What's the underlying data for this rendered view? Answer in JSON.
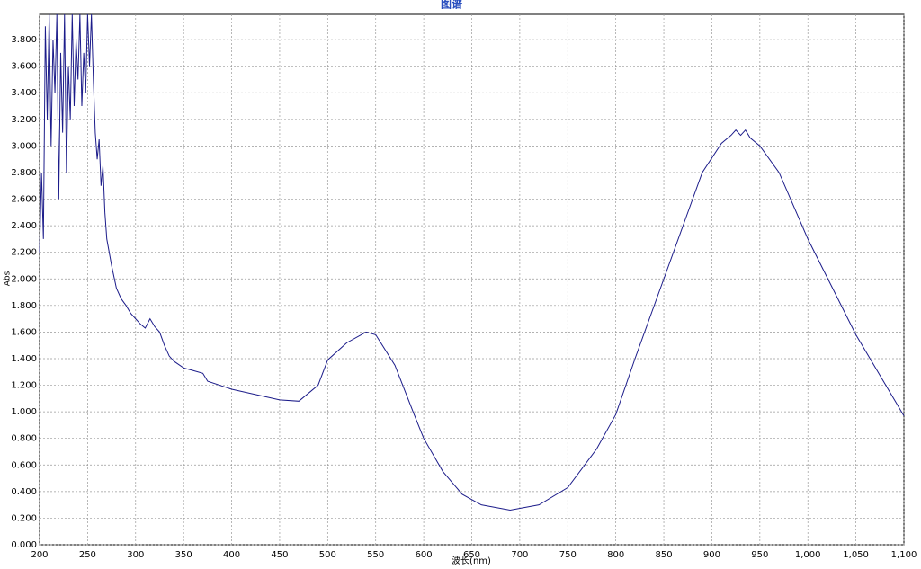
{
  "chart_data": {
    "type": "line",
    "title": "图谱",
    "y_label": "Abs",
    "x_label": "波长(nm)",
    "xlim": [
      200,
      1100
    ],
    "ylim": [
      0,
      3.99
    ],
    "grid": true,
    "xticks": [
      200,
      250,
      300,
      350,
      400,
      450,
      500,
      550,
      600,
      650,
      700,
      750,
      800,
      850,
      900,
      950,
      {
        "value": 1000,
        "label": "1,000"
      },
      {
        "value": 1050,
        "label": "1,050"
      },
      {
        "value": 1100,
        "label": "1,100"
      }
    ],
    "yticks": [
      {
        "value": 0,
        "label": "0.000"
      },
      {
        "value": 0.2,
        "label": "0.200"
      },
      {
        "value": 0.4,
        "label": "0.400"
      },
      {
        "value": 0.6,
        "label": "0.600"
      },
      {
        "value": 0.8,
        "label": "0.800"
      },
      {
        "value": 1,
        "label": "1.000"
      },
      {
        "value": 1.2,
        "label": "1.200"
      },
      {
        "value": 1.4,
        "label": "1.400"
      },
      {
        "value": 1.6,
        "label": "1.600"
      },
      {
        "value": 1.8,
        "label": "1.800"
      },
      {
        "value": 2,
        "label": "2.000"
      },
      {
        "value": 2.2,
        "label": "2.200"
      },
      {
        "value": 2.4,
        "label": "2.400"
      },
      {
        "value": 2.6,
        "label": "2.600"
      },
      {
        "value": 2.8,
        "label": "2.800"
      },
      {
        "value": 3,
        "label": "3.000"
      },
      {
        "value": 3.2,
        "label": "3.200"
      },
      {
        "value": 3.4,
        "label": "3.400"
      },
      {
        "value": 3.6,
        "label": "3.600"
      },
      {
        "value": 3.8,
        "label": "3.800"
      }
    ],
    "x": [
      200,
      202,
      204,
      206,
      208,
      210,
      212,
      214,
      216,
      218,
      220,
      222,
      224,
      226,
      228,
      230,
      232,
      234,
      236,
      238,
      240,
      242,
      244,
      246,
      248,
      250,
      252,
      254,
      256,
      258,
      260,
      262,
      264,
      266,
      268,
      270,
      275,
      280,
      285,
      290,
      295,
      300,
      305,
      310,
      315,
      320,
      325,
      330,
      335,
      340,
      350,
      360,
      370,
      375,
      400,
      450,
      470,
      490,
      500,
      520,
      540,
      550,
      570,
      590,
      600,
      620,
      640,
      660,
      690,
      720,
      750,
      780,
      800,
      820,
      850,
      870,
      890,
      910,
      920,
      925,
      930,
      935,
      940,
      950,
      970,
      1000,
      1050,
      1100
    ],
    "series": [
      {
        "color": "#1c1c8a",
        "values": [
          2.2,
          2.8,
          2.3,
          3.9,
          3.2,
          3.99,
          3.0,
          3.8,
          3.4,
          3.99,
          2.6,
          3.7,
          3.1,
          3.99,
          2.8,
          3.6,
          3.2,
          3.99,
          3.3,
          3.8,
          3.5,
          3.99,
          3.3,
          3.7,
          3.4,
          3.99,
          3.6,
          3.99,
          3.5,
          3.1,
          2.9,
          3.05,
          2.7,
          2.85,
          2.5,
          2.3,
          2.1,
          1.93,
          1.85,
          1.8,
          1.74,
          1.7,
          1.66,
          1.63,
          1.7,
          1.64,
          1.6,
          1.5,
          1.42,
          1.38,
          1.33,
          1.31,
          1.29,
          1.23,
          1.17,
          1.09,
          1.08,
          1.2,
          1.39,
          1.52,
          1.6,
          1.58,
          1.35,
          0.98,
          0.8,
          0.55,
          0.38,
          0.3,
          0.26,
          0.3,
          0.43,
          0.72,
          0.98,
          1.4,
          2.0,
          2.4,
          2.8,
          3.02,
          3.08,
          3.12,
          3.08,
          3.12,
          3.06,
          3.0,
          2.8,
          2.3,
          1.58,
          0.97
        ]
      }
    ]
  }
}
